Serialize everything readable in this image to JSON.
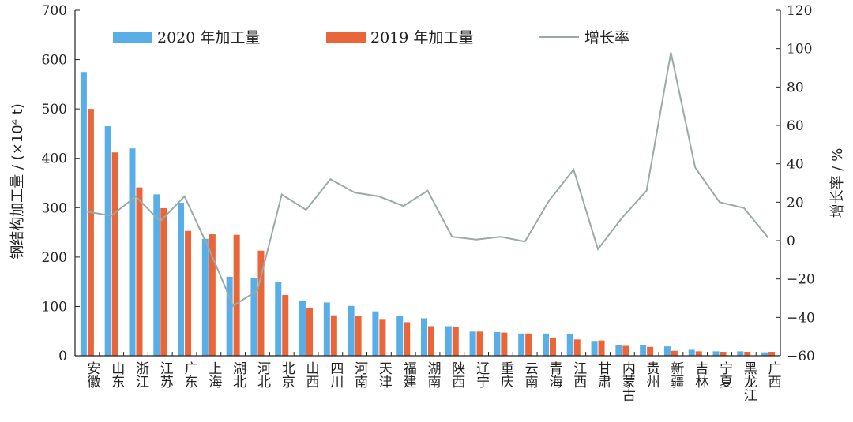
{
  "chart_data": {
    "type": "bar",
    "categories": [
      "安徽",
      "山东",
      "浙江",
      "江苏",
      "广东",
      "上海",
      "湖北",
      "河北",
      "北京",
      "山西",
      "四川",
      "河南",
      "天津",
      "福建",
      "湖南",
      "陕西",
      "辽宁",
      "重庆",
      "云南",
      "青海",
      "江西",
      "甘肃",
      "内蒙古",
      "贵州",
      "新疆",
      "吉林",
      "宁夏",
      "黑龙江",
      "广西"
    ],
    "series": [
      {
        "name": "2020 年加工量",
        "axis": "left",
        "kind": "bar",
        "color": "#5aaee8",
        "values": [
          575,
          465,
          420,
          327,
          310,
          237,
          160,
          158,
          150,
          112,
          108,
          101,
          90,
          80,
          76,
          60,
          49,
          48,
          45,
          45,
          44,
          30,
          21,
          21,
          19,
          12,
          9,
          9,
          7
        ]
      },
      {
        "name": "2019 年加工量",
        "axis": "left",
        "kind": "bar",
        "color": "#e8663a",
        "values": [
          500,
          412,
          341,
          299,
          253,
          246,
          245,
          213,
          123,
          97,
          82,
          80,
          73,
          68,
          60,
          59,
          49,
          47,
          45,
          37,
          33,
          31,
          20,
          18,
          10,
          9,
          8,
          8,
          8
        ]
      },
      {
        "name": "增长率",
        "axis": "right",
        "kind": "line",
        "color": "#9aaaa6",
        "values": [
          15,
          13,
          23,
          10,
          23,
          -4,
          -34,
          -26,
          24,
          16,
          32,
          25,
          23,
          18,
          26,
          2,
          0.5,
          2,
          -0.5,
          21,
          37,
          -4.5,
          12,
          26,
          98,
          38,
          20,
          17,
          1.5
        ]
      }
    ],
    "ylabel": "钢结构加工量 / (×10⁴ t)",
    "y2label": "增长率 / %",
    "ylim": [
      0,
      700
    ],
    "y2lim": [
      -60,
      120
    ],
    "yticks": [
      "0",
      "100",
      "200",
      "300",
      "400",
      "500",
      "600",
      "700"
    ],
    "y2ticks": [
      "−60",
      "−40",
      "−20",
      "0",
      "20",
      "40",
      "60",
      "80",
      "100",
      "120"
    ],
    "legend_placement": "top",
    "grid": false
  }
}
